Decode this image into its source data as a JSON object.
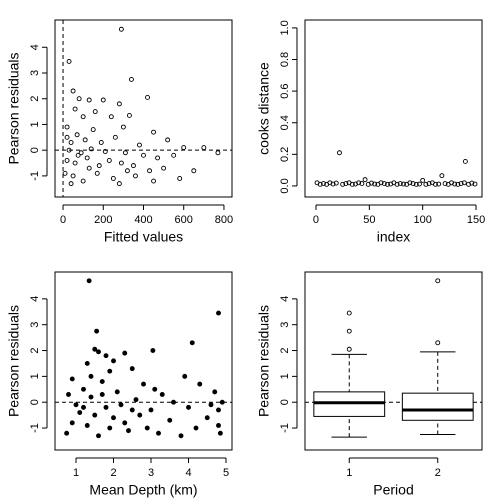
{
  "chart_data": [
    {
      "type": "scatter",
      "xlabel": "Fitted values",
      "ylabel": "Pearson residuals",
      "xlim": [
        -40,
        840
      ],
      "ylim": [
        -1.82,
        5.06
      ],
      "xticks": [
        0,
        200,
        400,
        600,
        800
      ],
      "yticks": [
        -1,
        0,
        1,
        2,
        3,
        4
      ],
      "hline": 0,
      "vline": 0,
      "marker": "open",
      "color": "#000000",
      "x": [
        290,
        30,
        340,
        50,
        80,
        130,
        420,
        200,
        280,
        60,
        100,
        160,
        240,
        330,
        20,
        70,
        150,
        300,
        450,
        520,
        40,
        110,
        190,
        260,
        380,
        600,
        700,
        30,
        90,
        140,
        210,
        310,
        400,
        470,
        550,
        770,
        20,
        60,
        120,
        180,
        230,
        290,
        350,
        430,
        500,
        10,
        50,
        100,
        170,
        250,
        280,
        360,
        450,
        580,
        650,
        40,
        130,
        320,
        20,
        75
      ],
      "values": [
        4.7,
        3.45,
        2.75,
        2.3,
        2.0,
        1.95,
        2.05,
        1.95,
        1.8,
        1.6,
        1.3,
        1.5,
        1.3,
        1.35,
        0.9,
        0.6,
        0.8,
        0.9,
        0.7,
        0.4,
        0.3,
        0.4,
        0.3,
        0.5,
        0.2,
        0.1,
        0.1,
        0,
        -0.1,
        0.05,
        -0.05,
        -0.1,
        -0.2,
        -0.3,
        -0.2,
        -0.1,
        -0.4,
        -0.5,
        -0.3,
        -0.6,
        -0.4,
        -0.5,
        -0.6,
        -0.8,
        -0.7,
        -0.9,
        -1.0,
        -1.2,
        -0.9,
        -1.1,
        -1.3,
        -1.0,
        -1.2,
        -1.1,
        -0.8,
        -1.3,
        -0.7,
        -0.8,
        0.5,
        -0.2
      ]
    },
    {
      "type": "scatter",
      "xlabel": "index",
      "ylabel": "cooks distance",
      "xlim": [
        -10.3,
        155.6
      ],
      "ylim": [
        -0.07,
        1.05
      ],
      "xticks": [
        0,
        50,
        100,
        150
      ],
      "yticks": [
        {
          "value": 0,
          "label": "0.0"
        },
        {
          "value": 0.2,
          "label": "0.2"
        },
        {
          "value": 0.4,
          "label": "0.4"
        },
        {
          "value": 0.6,
          "label": "0.6"
        },
        {
          "value": 0.8,
          "label": "0.8"
        },
        {
          "value": 1,
          "label": "1.0"
        }
      ],
      "marker": "open",
      "color": "#000000",
      "x": [
        1,
        4,
        7,
        10,
        13,
        16,
        19,
        22,
        25,
        28,
        31,
        34,
        37,
        40,
        43,
        46,
        49,
        52,
        55,
        58,
        61,
        64,
        67,
        70,
        73,
        76,
        79,
        82,
        85,
        88,
        91,
        94,
        97,
        100,
        103,
        106,
        109,
        112,
        115,
        118,
        121,
        124,
        127,
        130,
        133,
        136,
        139,
        140,
        143,
        146,
        149
      ],
      "values": [
        0.02,
        0.01,
        0.015,
        0.01,
        0.02,
        0.012,
        0.018,
        0.21,
        0.01,
        0.015,
        0.02,
        0.01,
        0.012,
        0.02,
        0.015,
        0.04,
        0.01,
        0.018,
        0.012,
        0.01,
        0.02,
        0.015,
        0.01,
        0.012,
        0.02,
        0.01,
        0.015,
        0.012,
        0.01,
        0.02,
        0.015,
        0.01,
        0.012,
        0.035,
        0.01,
        0.015,
        0.02,
        0.01,
        0.012,
        0.065,
        0.015,
        0.01,
        0.02,
        0.012,
        0.01,
        0.015,
        0.02,
        0.155,
        0.01,
        0.018,
        0.012
      ]
    },
    {
      "type": "scatter",
      "xlabel": "Mean Depth (km)",
      "ylabel": "Pearson residuals",
      "xlim": [
        0.44,
        5.16
      ],
      "ylim": [
        -1.85,
        5.04
      ],
      "xticks": [
        1,
        2,
        3,
        4,
        5
      ],
      "yticks": [
        -1,
        0,
        1,
        2,
        3,
        4
      ],
      "hline": 0,
      "marker": "filled",
      "color": "#000000",
      "x": [
        1.35,
        4.8,
        1.55,
        4.1,
        1.5,
        1.6,
        2.3,
        3.05,
        1.8,
        1.3,
        2.5,
        1.9,
        3.9,
        0.9,
        1.7,
        2.8,
        4.3,
        1.2,
        2.1,
        3.3,
        4.7,
        0.8,
        1.4,
        2.6,
        3.6,
        4.9,
        1.0,
        1.8,
        2.2,
        3.0,
        4.0,
        4.8,
        1.1,
        1.5,
        2.0,
        2.7,
        3.5,
        4.5,
        0.9,
        1.3,
        1.9,
        2.4,
        3.2,
        4.2,
        4.85,
        0.75,
        1.6,
        2.9,
        3.8,
        4.8,
        1.2,
        2.5,
        1.7,
        3.1,
        4.6,
        2.0,
        1.4,
        2.3
      ],
      "values": [
        4.7,
        3.45,
        2.75,
        2.3,
        2.05,
        1.95,
        1.9,
        2.0,
        1.8,
        1.5,
        1.3,
        1.2,
        1.0,
        0.9,
        0.8,
        0.7,
        0.7,
        0.5,
        0.4,
        0.3,
        0.4,
        0.3,
        0.2,
        0.1,
        0.0,
        0.0,
        -0.1,
        -0.2,
        -0.1,
        -0.3,
        -0.2,
        -0.3,
        -0.4,
        -0.5,
        -0.6,
        -0.5,
        -0.7,
        -0.6,
        -0.8,
        -0.9,
        -1.0,
        -1.1,
        -1.2,
        -1.0,
        -1.2,
        -1.2,
        -1.3,
        -1.0,
        -1.3,
        -0.9,
        -0.2,
        -0.3,
        0.3,
        0.5,
        -0.1,
        1.6,
        1.0,
        -0.8
      ]
    },
    {
      "type": "box",
      "xlabel": "Period",
      "ylabel": "Pearson residuals",
      "ylim": [
        -1.85,
        5.04
      ],
      "yticks": [
        -1,
        0,
        1,
        2,
        3,
        4
      ],
      "hline": 0,
      "categories": [
        "1",
        "2"
      ],
      "boxes": [
        {
          "whisker_low": -1.35,
          "q1": -0.55,
          "median": -0.02,
          "q3": 0.4,
          "whisker_high": 1.85,
          "outliers": [
            2.05,
            2.75,
            3.45
          ]
        },
        {
          "whisker_low": -1.25,
          "q1": -0.7,
          "median": -0.3,
          "q3": 0.35,
          "whisker_high": 1.95,
          "outliers": [
            2.3,
            4.7
          ]
        }
      ]
    }
  ]
}
